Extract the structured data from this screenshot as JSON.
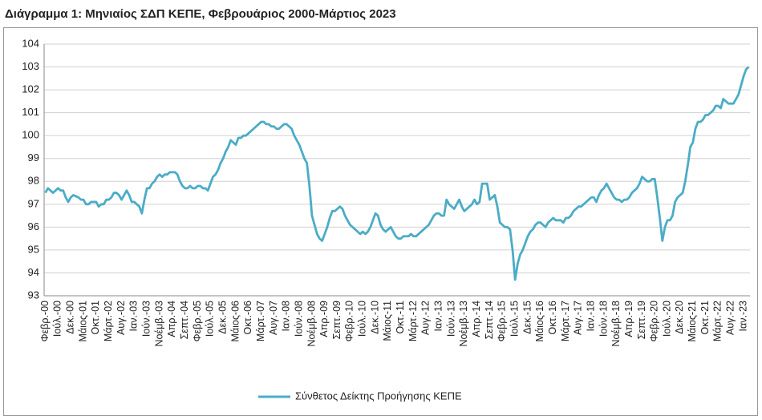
{
  "chart_data": {
    "type": "line",
    "title": "Διάγραμμα 1: Μηνιαίος ΣΔΠ ΚΕΠΕ, Φεβρουάριος 2000-Μάρτιος 2023",
    "categories": [
      "Φεβρ.-00",
      null,
      null,
      null,
      null,
      "Ιούλ.-00",
      null,
      null,
      null,
      null,
      "Δεκ.-00",
      null,
      null,
      null,
      null,
      "Μάιος-01",
      null,
      null,
      null,
      null,
      "Οκτ.-01",
      null,
      null,
      null,
      null,
      "Μάρτ.-02",
      null,
      null,
      null,
      null,
      "Αυγ.-02",
      null,
      null,
      null,
      null,
      "Ιαν.-03",
      null,
      null,
      null,
      null,
      "Ιούν.-03",
      null,
      null,
      null,
      null,
      "Νοέμβ.-03",
      null,
      null,
      null,
      null,
      "Απρ.-04",
      null,
      null,
      null,
      null,
      "Σεπτ.-04",
      null,
      null,
      null,
      null,
      "Φεβρ.-05",
      null,
      null,
      null,
      null,
      "Ιούλ.-05",
      null,
      null,
      null,
      null,
      "Δεκ.-05",
      null,
      null,
      null,
      null,
      "Μάιος-06",
      null,
      null,
      null,
      null,
      "Οκτ.-06",
      null,
      null,
      null,
      null,
      "Μάρτ.-07",
      null,
      null,
      null,
      null,
      "Αυγ.-07",
      null,
      null,
      null,
      null,
      "Ιαν.-08",
      null,
      null,
      null,
      null,
      "Ιούν.-08",
      null,
      null,
      null,
      null,
      "Νοέμβ.-08",
      null,
      null,
      null,
      null,
      "Απρ.-09",
      null,
      null,
      null,
      null,
      "Σεπτ.-09",
      null,
      null,
      null,
      null,
      "Φεβρ.-10",
      null,
      null,
      null,
      null,
      "Ιούλ.-10",
      null,
      null,
      null,
      null,
      "Δεκ.-10",
      null,
      null,
      null,
      null,
      "Μάιος-11",
      null,
      null,
      null,
      null,
      "Οκτ.-11",
      null,
      null,
      null,
      null,
      "Μάρτ.-12",
      null,
      null,
      null,
      null,
      "Αυγ.-12",
      null,
      null,
      null,
      null,
      "Ιαν.-13",
      null,
      null,
      null,
      null,
      "Ιούν.-13",
      null,
      null,
      null,
      null,
      "Νοέμβ.-13",
      null,
      null,
      null,
      null,
      "Απρ.-14",
      null,
      null,
      null,
      null,
      "Σεπτ.-14",
      null,
      null,
      null,
      null,
      "Φεβρ.-15",
      null,
      null,
      null,
      null,
      "Ιούλ.-15",
      null,
      null,
      null,
      null,
      "Δεκ.-15",
      null,
      null,
      null,
      null,
      "Μάιος-16",
      null,
      null,
      null,
      null,
      "Οκτ.-16",
      null,
      null,
      null,
      null,
      "Μάρτ.-17",
      null,
      null,
      null,
      null,
      "Αυγ.-17",
      null,
      null,
      null,
      null,
      "Ιαν.-18",
      null,
      null,
      null,
      null,
      "Ιούν.-18",
      null,
      null,
      null,
      null,
      "Νοέμβ.-18",
      null,
      null,
      null,
      null,
      "Απρ.-19",
      null,
      null,
      null,
      null,
      "Σεπτ.-19",
      null,
      null,
      null,
      null,
      "Φεβρ.-20",
      null,
      null,
      null,
      null,
      "Ιούλ.-20",
      null,
      null,
      null,
      null,
      "Δεκ.-20",
      null,
      null,
      null,
      null,
      "Μάιος-21",
      null,
      null,
      null,
      null,
      "Οκτ.-21",
      null,
      null,
      null,
      null,
      "Μάρτ.-22",
      null,
      null,
      null,
      null,
      "Αυγ.-22",
      null,
      null,
      null,
      null,
      "Ιαν.-23",
      null,
      null
    ],
    "series": [
      {
        "name": "Σύνθετος Δείκτης Προήγησης ΚΕΠΕ",
        "color": "#4bacc6",
        "values": [
          97.5,
          97.7,
          97.6,
          97.5,
          97.6,
          97.7,
          97.6,
          97.6,
          97.3,
          97.1,
          97.3,
          97.4,
          97.35,
          97.3,
          97.2,
          97.2,
          97.0,
          97.0,
          97.1,
          97.1,
          97.1,
          96.9,
          97.0,
          97.0,
          97.2,
          97.2,
          97.3,
          97.5,
          97.5,
          97.4,
          97.2,
          97.4,
          97.6,
          97.4,
          97.1,
          97.1,
          97.0,
          96.9,
          96.6,
          97.2,
          97.7,
          97.7,
          97.9,
          98.0,
          98.2,
          98.3,
          98.2,
          98.3,
          98.3,
          98.4,
          98.4,
          98.4,
          98.3,
          98.0,
          97.8,
          97.7,
          97.7,
          97.8,
          97.7,
          97.7,
          97.8,
          97.8,
          97.7,
          97.7,
          97.6,
          97.9,
          98.2,
          98.3,
          98.5,
          98.8,
          99.0,
          99.3,
          99.5,
          99.8,
          99.7,
          99.6,
          99.9,
          99.9,
          100.0,
          100.0,
          100.1,
          100.2,
          100.3,
          100.4,
          100.5,
          100.6,
          100.6,
          100.5,
          100.5,
          100.4,
          100.4,
          100.3,
          100.3,
          100.4,
          100.5,
          100.5,
          100.4,
          100.3,
          100.0,
          99.8,
          99.6,
          99.3,
          99.0,
          98.8,
          97.8,
          96.5,
          96.1,
          95.7,
          95.5,
          95.4,
          95.7,
          96.0,
          96.4,
          96.7,
          96.7,
          96.8,
          96.9,
          96.8,
          96.5,
          96.3,
          96.1,
          96.0,
          95.9,
          95.8,
          95.7,
          95.8,
          95.7,
          95.8,
          96.0,
          96.3,
          96.6,
          96.5,
          96.1,
          95.9,
          95.8,
          95.9,
          96.0,
          95.8,
          95.6,
          95.5,
          95.5,
          95.6,
          95.6,
          95.6,
          95.7,
          95.6,
          95.6,
          95.7,
          95.8,
          95.9,
          96.0,
          96.1,
          96.3,
          96.5,
          96.6,
          96.6,
          96.5,
          96.5,
          97.2,
          97.0,
          96.9,
          96.8,
          97.0,
          97.2,
          96.9,
          96.7,
          96.8,
          96.9,
          97.0,
          97.2,
          97.0,
          97.1,
          97.9,
          97.9,
          97.9,
          97.2,
          97.3,
          97.4,
          96.9,
          96.2,
          96.1,
          96.0,
          96.0,
          95.9,
          95.0,
          93.7,
          94.4,
          94.8,
          95.0,
          95.3,
          95.6,
          95.8,
          95.9,
          96.1,
          96.2,
          96.2,
          96.1,
          96.0,
          96.2,
          96.3,
          96.4,
          96.3,
          96.3,
          96.3,
          96.2,
          96.4,
          96.4,
          96.5,
          96.7,
          96.8,
          96.9,
          96.9,
          97.0,
          97.1,
          97.2,
          97.3,
          97.3,
          97.1,
          97.4,
          97.6,
          97.7,
          97.9,
          97.7,
          97.5,
          97.3,
          97.2,
          97.2,
          97.1,
          97.2,
          97.2,
          97.3,
          97.5,
          97.6,
          97.7,
          97.9,
          98.2,
          98.1,
          98.0,
          98.0,
          98.1,
          98.1,
          97.3,
          96.4,
          95.4,
          96.0,
          96.3,
          96.3,
          96.5,
          97.1,
          97.3,
          97.4,
          97.5,
          98.0,
          98.7,
          99.5,
          99.7,
          100.3,
          100.6,
          100.6,
          100.7,
          100.9,
          100.9,
          101.0,
          101.1,
          101.3,
          101.3,
          101.2,
          101.6,
          101.5,
          101.4,
          101.4,
          101.4,
          101.6,
          101.8,
          102.2,
          102.6,
          102.9,
          103.0
        ]
      }
    ],
    "ylim": [
      93,
      104
    ],
    "yticks": [
      93,
      94,
      95,
      96,
      97,
      98,
      99,
      100,
      101,
      102,
      103,
      104
    ],
    "grid": true,
    "legend": "bottom"
  }
}
